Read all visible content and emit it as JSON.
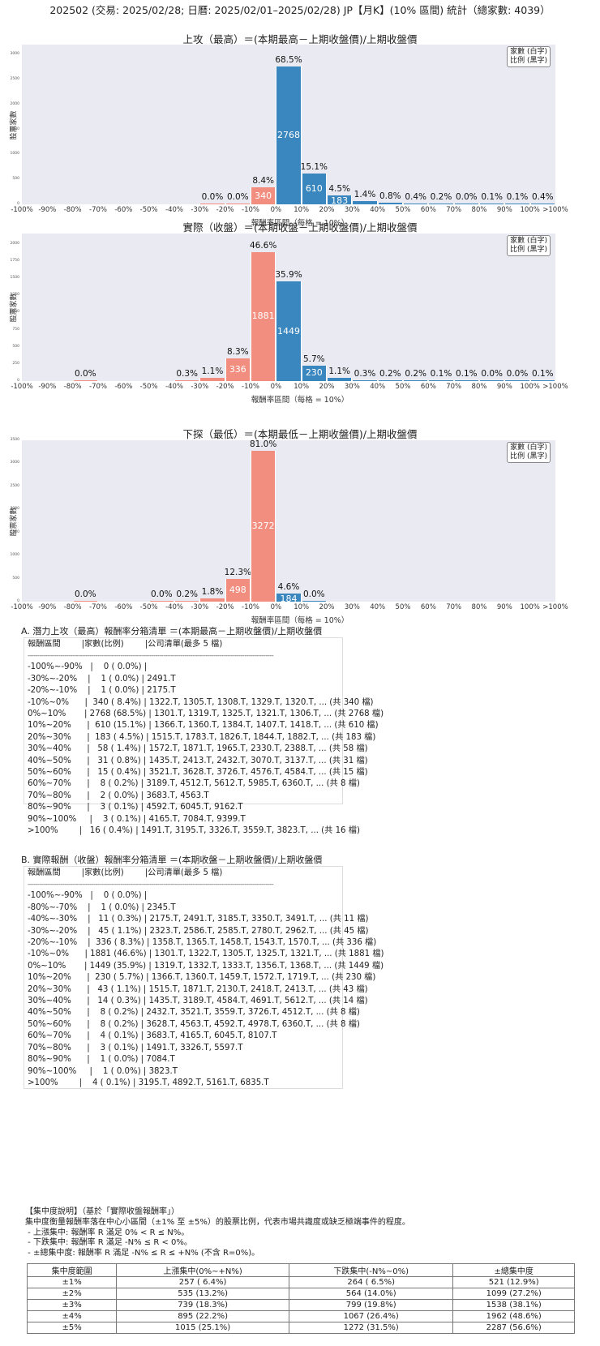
{
  "header": {
    "title": "202502 (交易: 2025/02/28; 日曆: 2025/02/01–2025/02/28) JP【月K】(10% 區間) 統計（總家數: 4039）"
  },
  "colors": {
    "negative": "#f28e80",
    "positive": "#3a86bf",
    "plot_bg": "#eaeaf2"
  },
  "legend": {
    "line1": "家數 (白字)",
    "line2": "比例 (黑字)"
  },
  "axis": {
    "ylabel": "股票家數",
    "xlabel": "報酬率區間（每格 = 10%）",
    "xticks": [
      "-100%",
      "-90%",
      "-80%",
      "-70%",
      "-60%",
      "-50%",
      "-40%",
      "-30%",
      "-20%",
      "-10%",
      "0%",
      "10%",
      "20%",
      "30%",
      "40%",
      "50%",
      "60%",
      "70%",
      "80%",
      "90%",
      "100%",
      ">100%"
    ]
  },
  "chart_data": [
    {
      "type": "bar",
      "title": "上攻（最高）＝(本期最高－上期收盤價)/上期收盤價",
      "xlabel": "報酬率區間（每格 = 10%）",
      "ylabel": "股票家數",
      "ylim": [
        0,
        3200
      ],
      "yticks": [
        0,
        500,
        1000,
        1500,
        2000,
        2500,
        3000
      ],
      "categories": [
        "-100%~-90%",
        "-90%~-80%",
        "-80%~-70%",
        "-70%~-60%",
        "-60%~-50%",
        "-50%~-40%",
        "-40%~-30%",
        "-30%~-20%",
        "-20%~-10%",
        "-10%~0%",
        "0%~10%",
        "10%~20%",
        "20%~30%",
        "30%~40%",
        "40%~50%",
        "50%~60%",
        "60%~70%",
        "70%~80%",
        "80%~90%",
        "90%~100%",
        ">100%"
      ],
      "values": [
        0,
        0,
        0,
        0,
        0,
        0,
        0,
        1,
        1,
        340,
        2768,
        610,
        183,
        58,
        31,
        15,
        8,
        2,
        3,
        3,
        16
      ],
      "percent_labels": [
        "",
        "",
        "",
        "",
        "",
        "",
        "",
        "0.0%",
        "0.0%",
        "8.4%",
        "68.5%",
        "15.1%",
        "4.5%",
        "1.4%",
        "0.8%",
        "0.4%",
        "0.2%",
        "0.0%",
        "0.1%",
        "0.1%",
        "0.4%"
      ],
      "count_labels": [
        "",
        "",
        "",
        "",
        "",
        "",
        "",
        "",
        "",
        "340",
        "2768",
        "610",
        "183",
        "",
        "",
        "",
        "",
        "",
        "",
        "",
        ""
      ],
      "grid": false,
      "legend_position": "upper right"
    },
    {
      "type": "bar",
      "title": "實際（收盤）＝(本期收盤－上期收盤價)/上期收盤價",
      "xlabel": "報酬率區間（每格 = 10%）",
      "ylabel": "股票家數",
      "ylim": [
        0,
        2150
      ],
      "yticks": [
        0,
        250,
        500,
        750,
        1000,
        1250,
        1500,
        1750,
        2000
      ],
      "categories": [
        "-100%~-90%",
        "-90%~-80%",
        "-80%~-70%",
        "-70%~-60%",
        "-60%~-50%",
        "-50%~-40%",
        "-40%~-30%",
        "-30%~-20%",
        "-20%~-10%",
        "-10%~0%",
        "0%~10%",
        "10%~20%",
        "20%~30%",
        "30%~40%",
        "40%~50%",
        "50%~60%",
        "60%~70%",
        "70%~80%",
        "80%~90%",
        "90%~100%",
        ">100%"
      ],
      "values": [
        0,
        0,
        1,
        0,
        0,
        0,
        11,
        45,
        336,
        1881,
        1449,
        230,
        43,
        14,
        8,
        8,
        4,
        3,
        1,
        1,
        4
      ],
      "percent_labels": [
        "",
        "",
        "0.0%",
        "",
        "",
        "",
        "0.3%",
        "1.1%",
        "8.3%",
        "46.6%",
        "35.9%",
        "5.7%",
        "1.1%",
        "0.3%",
        "0.2%",
        "0.2%",
        "0.1%",
        "0.1%",
        "0.0%",
        "0.0%",
        "0.1%"
      ],
      "count_labels": [
        "",
        "",
        "",
        "",
        "",
        "",
        "",
        "",
        "336",
        "1881",
        "1449",
        "230",
        "",
        "",
        "",
        "",
        "",
        "",
        "",
        "",
        ""
      ],
      "grid": false,
      "legend_position": "upper right"
    },
    {
      "type": "bar",
      "title": "下探（最低）＝(本期最低－上期收盤價)/上期收盤價",
      "xlabel": "報酬率區間（每格 = 10%）",
      "ylabel": "股票家數",
      "ylim": [
        0,
        3500
      ],
      "yticks": [
        0,
        500,
        1000,
        1500,
        2000,
        2500,
        3000,
        3500
      ],
      "categories": [
        "-100%~-90%",
        "-90%~-80%",
        "-80%~-70%",
        "-70%~-60%",
        "-60%~-50%",
        "-50%~-40%",
        "-40%~-30%",
        "-30%~-20%",
        "-20%~-10%",
        "-10%~0%",
        "0%~10%",
        "10%~20%",
        "20%~30%",
        "30%~40%",
        "40%~50%",
        "50%~60%",
        "60%~70%",
        "70%~80%",
        "80%~90%",
        "90%~100%",
        ">100%"
      ],
      "values": [
        0,
        0,
        1,
        0,
        0,
        1,
        8,
        73,
        498,
        3272,
        184,
        1,
        0,
        0,
        0,
        0,
        0,
        0,
        0,
        0,
        0
      ],
      "percent_labels": [
        "",
        "",
        "0.0%",
        "",
        "",
        "0.0%",
        "0.2%",
        "1.8%",
        "12.3%",
        "81.0%",
        "4.6%",
        "0.0%",
        "",
        "",
        "",
        "",
        "",
        "",
        "",
        "",
        ""
      ],
      "count_labels": [
        "",
        "",
        "",
        "",
        "",
        "",
        "",
        "",
        "498",
        "3272",
        "184",
        "",
        "",
        "",
        "",
        "",
        "",
        "",
        "",
        "",
        ""
      ],
      "grid": false,
      "legend_position": "upper right"
    }
  ],
  "list_a": {
    "title": "A. 潛力上攻（最高）報酬率分箱清單 ＝(本期最高－上期收盤價)/上期收盤價",
    "header": "報酬區間        |家數(比例)        |公司清單(最多 5 檔)",
    "divider": "-------------------------------------------------------------------------------------------------------------------------------",
    "rows": [
      "-100%~-90%   |    0 ( 0.0%) |",
      "-30%~-20%    |    1 ( 0.0%) | 2491.T",
      "-20%~-10%    |    1 ( 0.0%) | 2175.T",
      "-10%~0%      |  340 ( 8.4%) | 1322.T, 1305.T, 1308.T, 1329.T, 1320.T, ... (共 340 檔)",
      "0%~10%       | 2768 (68.5%) | 1301.T, 1319.T, 1325.T, 1321.T, 1306.T, ... (共 2768 檔)",
      "10%~20%      |  610 (15.1%) | 1366.T, 1360.T, 1384.T, 1407.T, 1418.T, ... (共 610 檔)",
      "20%~30%      |  183 ( 4.5%) | 1515.T, 1783.T, 1826.T, 1844.T, 1882.T, ... (共 183 檔)",
      "30%~40%      |   58 ( 1.4%) | 1572.T, 1871.T, 1965.T, 2330.T, 2388.T, ... (共 58 檔)",
      "40%~50%      |   31 ( 0.8%) | 1435.T, 2413.T, 2432.T, 3070.T, 3137.T, ... (共 31 檔)",
      "50%~60%      |   15 ( 0.4%) | 3521.T, 3628.T, 3726.T, 4576.T, 4584.T, ... (共 15 檔)",
      "60%~70%      |    8 ( 0.2%) | 3189.T, 4512.T, 5612.T, 5985.T, 6360.T, ... (共 8 檔)",
      "70%~80%      |    2 ( 0.0%) | 3683.T, 4563.T",
      "80%~90%      |    3 ( 0.1%) | 4592.T, 6045.T, 9162.T",
      "90%~100%     |    3 ( 0.1%) | 4165.T, 7084.T, 9399.T",
      ">100%        |   16 ( 0.4%) | 1491.T, 3195.T, 3326.T, 3559.T, 3823.T, ... (共 16 檔)"
    ]
  },
  "list_b": {
    "title": "B. 實際報酬（收盤）報酬率分箱清單 ＝(本期收盤－上期收盤價)/上期收盤價",
    "header": "報酬區間        |家數(比例)        |公司清單(最多 5 檔)",
    "divider": "-------------------------------------------------------------------------------------------------------------------------------",
    "rows": [
      "-100%~-90%   |    0 ( 0.0%) |",
      "-80%~-70%    |    1 ( 0.0%) | 2345.T",
      "-40%~-30%    |   11 ( 0.3%) | 2175.T, 2491.T, 3185.T, 3350.T, 3491.T, ... (共 11 檔)",
      "-30%~-20%    |   45 ( 1.1%) | 2323.T, 2586.T, 2585.T, 2780.T, 2962.T, ... (共 45 檔)",
      "-20%~-10%    |  336 ( 8.3%) | 1358.T, 1365.T, 1458.T, 1543.T, 1570.T, ... (共 336 檔)",
      "-10%~0%      | 1881 (46.6%) | 1301.T, 1322.T, 1305.T, 1325.T, 1321.T, ... (共 1881 檔)",
      "0%~10%       | 1449 (35.9%) | 1319.T, 1332.T, 1333.T, 1356.T, 1368.T, ... (共 1449 檔)",
      "10%~20%      |  230 ( 5.7%) | 1366.T, 1360.T, 1459.T, 1572.T, 1719.T, ... (共 230 檔)",
      "20%~30%      |   43 ( 1.1%) | 1515.T, 1871.T, 2130.T, 2418.T, 2413.T, ... (共 43 檔)",
      "30%~40%      |   14 ( 0.3%) | 1435.T, 3189.T, 4584.T, 4691.T, 5612.T, ... (共 14 檔)",
      "40%~50%      |    8 ( 0.2%) | 2432.T, 3521.T, 3559.T, 3726.T, 4512.T, ... (共 8 檔)",
      "50%~60%      |    8 ( 0.2%) | 3628.T, 4563.T, 4592.T, 4978.T, 6360.T, ... (共 8 檔)",
      "60%~70%      |    4 ( 0.1%) | 3683.T, 4165.T, 6045.T, 8107.T",
      "70%~80%      |    3 ( 0.1%) | 1491.T, 3326.T, 5597.T",
      "80%~90%      |    1 ( 0.0%) | 7084.T",
      "90%~100%     |    1 ( 0.0%) | 3823.T",
      ">100%        |    4 ( 0.1%) | 3195.T, 4892.T, 5161.T, 6835.T"
    ]
  },
  "concentration": {
    "title": "【集中度說明】（基於「實際收盤報酬率」）",
    "description": "集中度衡量報酬率落在中心小區間（±1% 至 ±5%）的股票比例，代表市場共識度或缺乏極端事件的程度。",
    "notes": [
      " - 上漲集中: 報酬率 R 滿足 0% < R ≤ N%。",
      " - 下跌集中: 報酬率 R 滿足 -N% ≤ R < 0%。",
      " - ±總集中度: 報酬率 R 滿足 -N% ≤ R ≤ +N% (不含 R=0%)。"
    ],
    "table": {
      "headers": [
        "集中度範圍",
        "上漲集中(0%~+N%)",
        "下跌集中(-N%~0%)",
        "±總集中度"
      ],
      "rows": [
        [
          "±1%",
          "257 ( 6.4%)",
          "264 ( 6.5%)",
          "521 (12.9%)"
        ],
        [
          "±2%",
          "535 (13.2%)",
          "564 (14.0%)",
          "1099 (27.2%)"
        ],
        [
          "±3%",
          "739 (18.3%)",
          "799 (19.8%)",
          "1538 (38.1%)"
        ],
        [
          "±4%",
          "895 (22.2%)",
          "1067 (26.4%)",
          "1962 (48.6%)"
        ],
        [
          "±5%",
          "1015 (25.1%)",
          "1272 (31.5%)",
          "2287 (56.6%)"
        ]
      ]
    }
  }
}
